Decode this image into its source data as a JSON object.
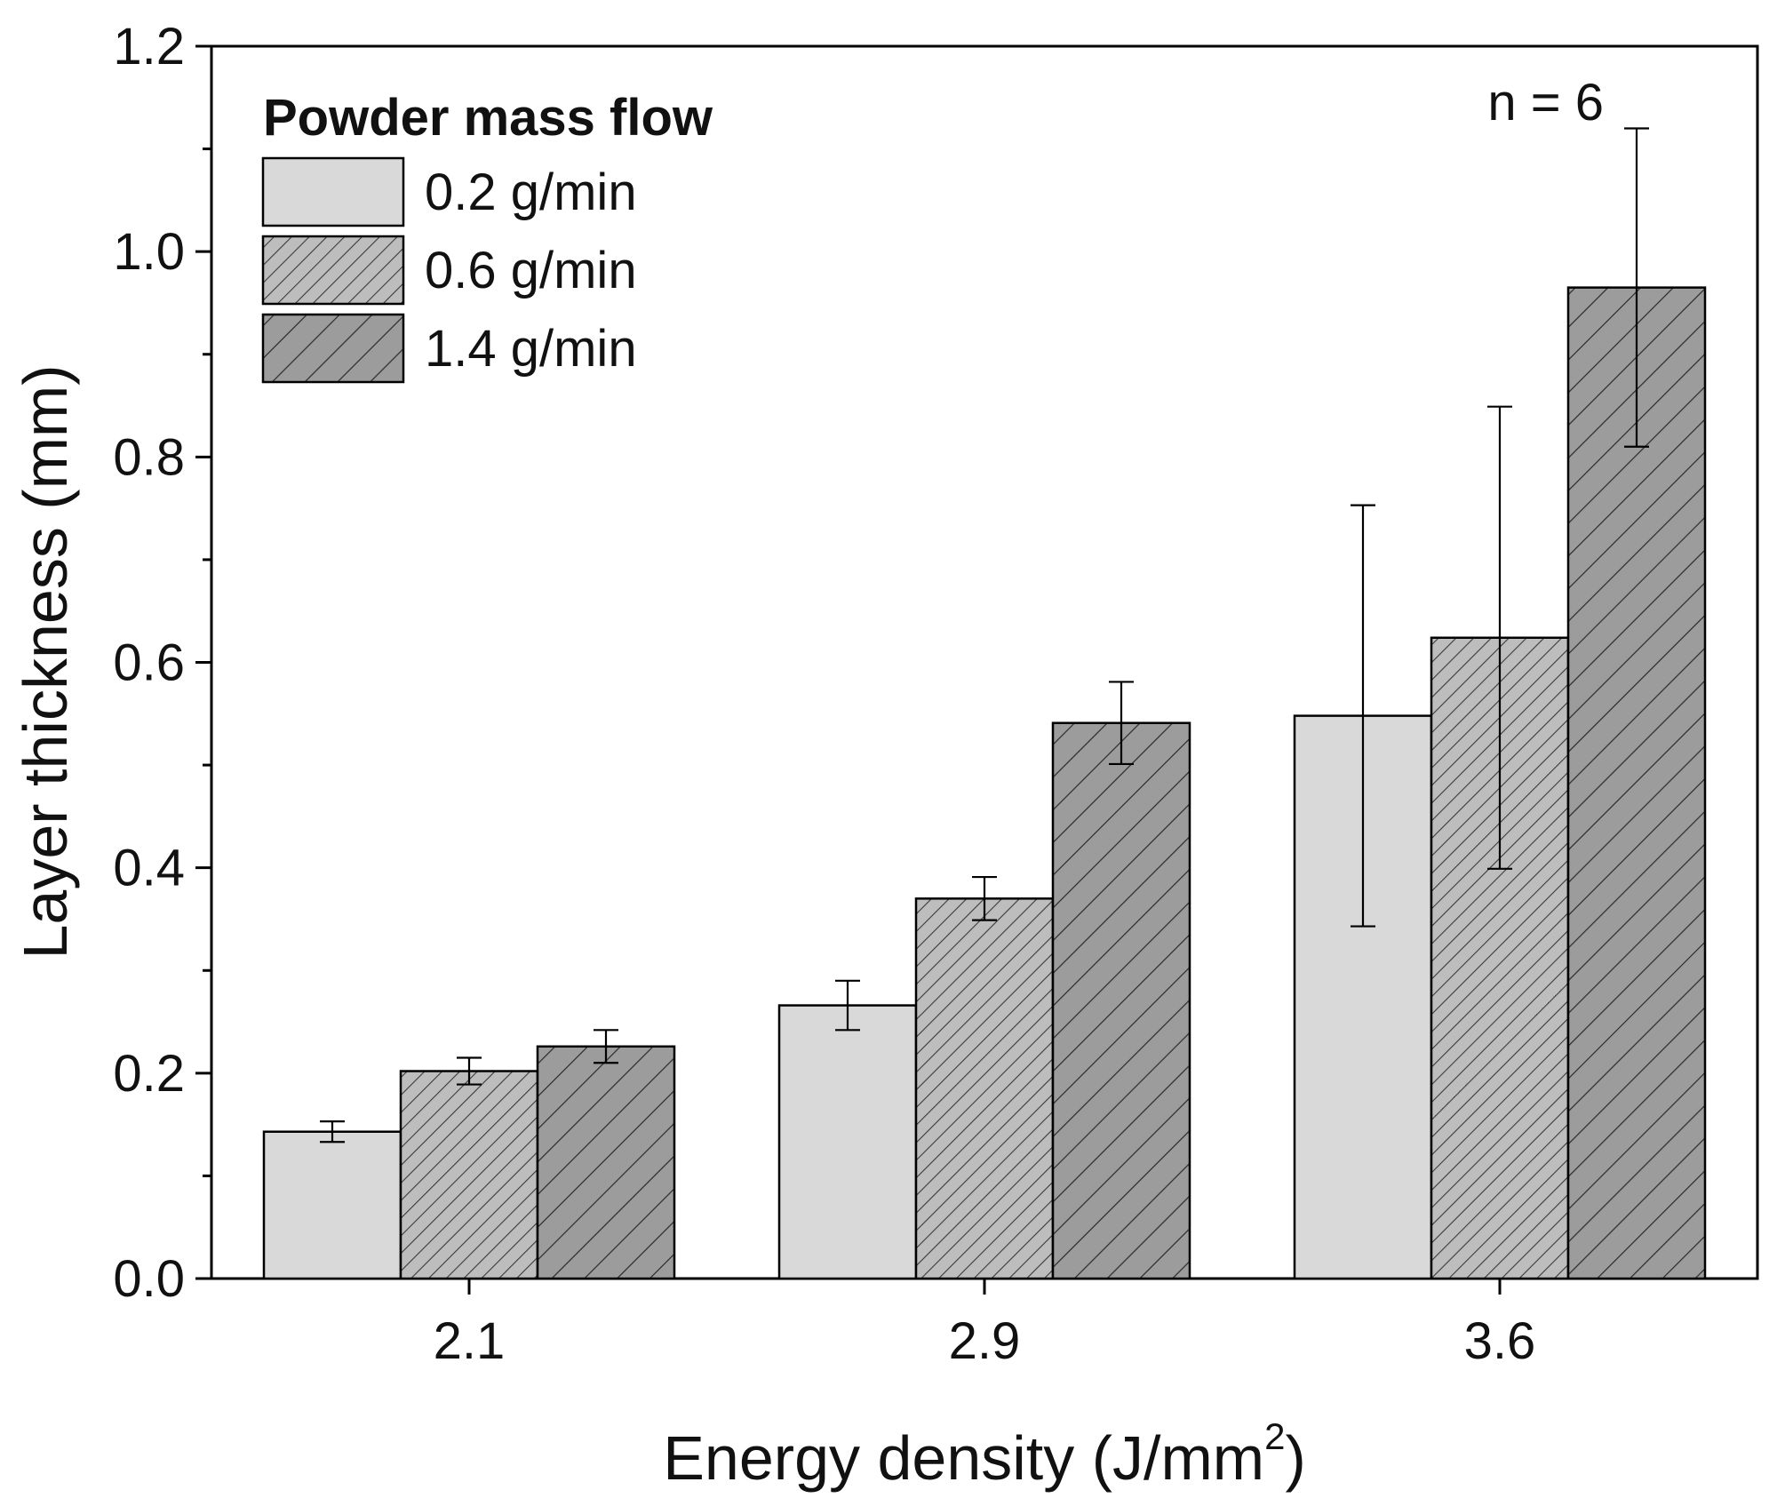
{
  "chart_data": {
    "type": "bar",
    "title": "",
    "xlabel": "Energy density (J/mm",
    "xlabel_sup": "2",
    "xlabel_end": ")",
    "ylabel": "Layer thickness (mm)",
    "ylim": [
      0,
      1.2
    ],
    "yticks": [
      0.0,
      0.2,
      0.4,
      0.6,
      0.8,
      1.0,
      1.2
    ],
    "ytick_labels": [
      "0.0",
      "0.2",
      "0.4",
      "0.6",
      "0.8",
      "1.0",
      "1.2"
    ],
    "categories": [
      "2.1",
      "2.9",
      "3.6"
    ],
    "legend_title": "Powder mass flow",
    "legend_position": "top-left",
    "annotation": "n = 6",
    "series": [
      {
        "name": "0.2 g/min",
        "values": [
          0.143,
          0.266,
          0.548
        ],
        "errors": [
          0.01,
          0.024,
          0.205
        ],
        "fill": "#d9d9d9",
        "pattern": "none"
      },
      {
        "name": "0.6 g/min",
        "values": [
          0.202,
          0.37,
          0.624
        ],
        "errors": [
          0.013,
          0.021,
          0.225
        ],
        "fill": "#bdbdbd",
        "pattern": "fine-hatch"
      },
      {
        "name": "1.4 g/min",
        "values": [
          0.226,
          0.541,
          0.965
        ],
        "errors": [
          0.016,
          0.04,
          0.155
        ],
        "fill": "#9c9c9c",
        "pattern": "coarse-hatch"
      }
    ]
  }
}
